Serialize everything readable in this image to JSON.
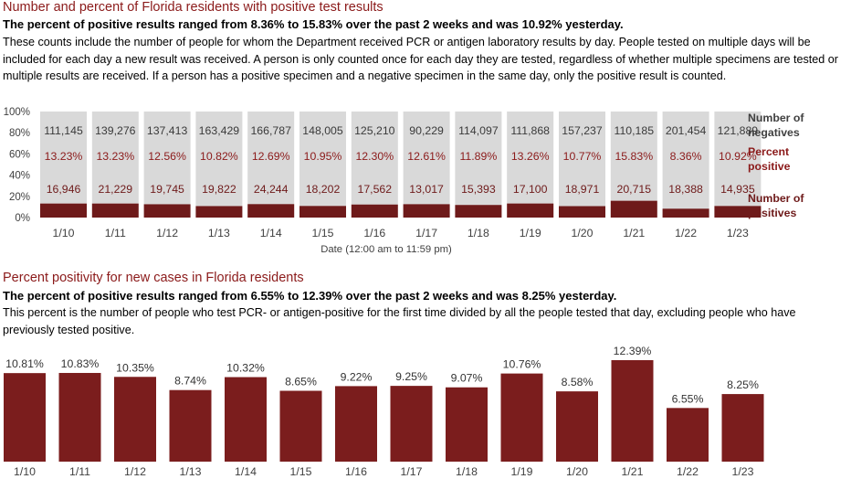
{
  "chart_data": [
    {
      "type": "bar",
      "stacked": true,
      "title": "Number and percent of Florida residents with positive test results",
      "subtitle": "The percent of positive results ranged from 8.36% to 15.83% over the past 2 weeks and was 10.92% yesterday.",
      "description": "These counts include the number of people for whom the Department received PCR or antigen laboratory results by day. People tested on multiple days will be included for each day a new result was received. A person is only counted once for each day they are tested, regardless of whether multiple specimens are tested or multiple results are received. If a person has a positive specimen and a negative specimen in the same day, only the positive result is counted.",
      "xlabel": "Date (12:00 am to 11:59 pm)",
      "ylabel": "",
      "ylim": [
        0,
        100
      ],
      "yticks": [
        "0%",
        "20%",
        "40%",
        "60%",
        "80%",
        "100%"
      ],
      "categories": [
        "1/10",
        "1/11",
        "1/12",
        "1/13",
        "1/14",
        "1/15",
        "1/16",
        "1/17",
        "1/18",
        "1/19",
        "1/20",
        "1/21",
        "1/22",
        "1/23"
      ],
      "legend_position": "right",
      "series": [
        {
          "name": "Number of negatives",
          "color": "#d9d9d9",
          "values": [
            "111,145",
            "139,276",
            "137,413",
            "163,429",
            "166,787",
            "148,005",
            "125,210",
            "90,229",
            "114,097",
            "111,868",
            "157,237",
            "110,185",
            "201,454",
            "121,889"
          ]
        },
        {
          "name": "Percent positive",
          "color": "#7b1d1d",
          "values": [
            "13.23%",
            "13.23%",
            "12.56%",
            "10.82%",
            "12.69%",
            "10.95%",
            "12.30%",
            "12.61%",
            "11.89%",
            "13.26%",
            "10.77%",
            "15.83%",
            "8.36%",
            "10.92%"
          ],
          "percent": [
            13.23,
            13.23,
            12.56,
            10.82,
            12.69,
            10.95,
            12.3,
            12.61,
            11.89,
            13.26,
            10.77,
            15.83,
            8.36,
            10.92
          ]
        },
        {
          "name": "Number of positives",
          "color": "#6e1a1a",
          "values": [
            "16,946",
            "21,229",
            "19,745",
            "19,822",
            "24,244",
            "18,202",
            "17,562",
            "13,017",
            "15,393",
            "17,100",
            "18,971",
            "20,715",
            "18,388",
            "14,935"
          ]
        }
      ]
    },
    {
      "type": "bar",
      "title": "Percent positivity for new cases in Florida residents",
      "subtitle": "The percent of positive results ranged from 6.55% to 12.39% over the past 2 weeks and was 8.25% yesterday.",
      "description": "This percent is the number of people who test PCR- or antigen-positive for the first time divided by all the people tested that day, excluding people who have previously tested positive.",
      "xlabel": "",
      "ylabel": "",
      "ylim": [
        0,
        12.39
      ],
      "color": "#7b1d1d",
      "categories": [
        "1/10",
        "1/11",
        "1/12",
        "1/13",
        "1/14",
        "1/15",
        "1/16",
        "1/17",
        "1/18",
        "1/19",
        "1/20",
        "1/21",
        "1/22",
        "1/23"
      ],
      "values": [
        10.81,
        10.83,
        10.35,
        8.74,
        10.32,
        8.65,
        9.22,
        9.25,
        9.07,
        10.76,
        8.58,
        12.39,
        6.55,
        8.25
      ],
      "labels": [
        "10.81%",
        "10.83%",
        "10.35%",
        "8.74%",
        "10.32%",
        "8.65%",
        "9.22%",
        "9.25%",
        "9.07%",
        "10.76%",
        "8.58%",
        "12.39%",
        "6.55%",
        "8.25%"
      ]
    }
  ]
}
